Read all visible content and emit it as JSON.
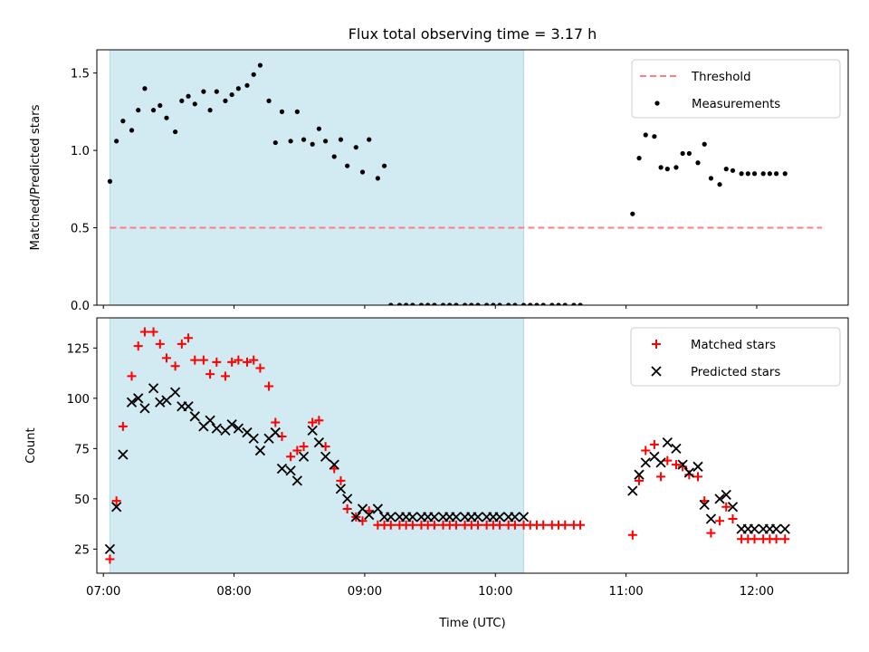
{
  "chart_data": [
    {
      "type": "scatter",
      "title": "Flux total observing time = 3.17 h",
      "xlabel": "",
      "ylabel": "Matched/Predicted stars",
      "xlim": [
        "06:57",
        "12:42"
      ],
      "ylim": [
        0,
        1.65
      ],
      "yticks": [
        0.0,
        0.5,
        1.0,
        1.5
      ],
      "ytick_labels": [
        "0.0",
        "0.5",
        "1.0",
        "1.5"
      ],
      "shaded_region": {
        "x_start": "07:03",
        "x_end": "10:13",
        "color": "#add8e6"
      },
      "legend_position": "upper right",
      "series": [
        {
          "name": "Threshold",
          "kind": "dashed-line",
          "color": "#ff7f7f",
          "x": [
            "07:03",
            "12:30"
          ],
          "y": [
            0.5,
            0.5
          ]
        },
        {
          "name": "Measurements",
          "kind": "dot",
          "color": "#000000",
          "x": [
            "07:03",
            "07:06",
            "07:09",
            "07:13",
            "07:16",
            "07:19",
            "07:23",
            "07:26",
            "07:29",
            "07:33",
            "07:36",
            "07:39",
            "07:42",
            "07:46",
            "07:49",
            "07:52",
            "07:56",
            "07:59",
            "08:02",
            "08:06",
            "08:09",
            "08:12",
            "08:16",
            "08:19",
            "08:22",
            "08:26",
            "08:29",
            "08:32",
            "08:36",
            "08:39",
            "08:42",
            "08:46",
            "08:49",
            "08:52",
            "08:56",
            "08:59",
            "09:02",
            "09:06",
            "09:09",
            "09:12",
            "09:16",
            "09:19",
            "09:22",
            "09:26",
            "09:29",
            "09:32",
            "09:36",
            "09:39",
            "09:42",
            "09:46",
            "09:49",
            "09:52",
            "09:56",
            "09:59",
            "10:02",
            "10:06",
            "10:09",
            "10:13",
            "10:16",
            "10:19",
            "10:22",
            "10:26",
            "10:29",
            "10:32",
            "10:36",
            "10:39",
            "11:03",
            "11:06",
            "11:09",
            "11:13",
            "11:16",
            "11:19",
            "11:23",
            "11:26",
            "11:29",
            "11:33",
            "11:36",
            "11:39",
            "11:43",
            "11:46",
            "11:49",
            "11:53",
            "11:56",
            "11:59",
            "12:03",
            "12:06",
            "12:09",
            "12:13"
          ],
          "y": [
            0.8,
            1.06,
            1.19,
            1.13,
            1.26,
            1.4,
            1.26,
            1.29,
            1.21,
            1.12,
            1.32,
            1.35,
            1.3,
            1.38,
            1.26,
            1.38,
            1.32,
            1.36,
            1.4,
            1.42,
            1.49,
            1.55,
            1.32,
            1.05,
            1.25,
            1.06,
            1.25,
            1.07,
            1.04,
            1.14,
            1.06,
            0.96,
            1.07,
            0.9,
            1.02,
            0.86,
            1.07,
            0.82,
            0.9,
            0.0,
            0.0,
            0.0,
            0.0,
            0.0,
            0.0,
            0.0,
            0.0,
            0.0,
            0.0,
            0.0,
            0.0,
            0.0,
            0.0,
            0.0,
            0.0,
            0.0,
            0.0,
            0.0,
            0.0,
            0.0,
            0.0,
            0.0,
            0.0,
            0.0,
            0.0,
            0.0,
            0.59,
            0.95,
            1.1,
            1.09,
            0.89,
            0.88,
            0.89,
            0.98,
            0.98,
            0.92,
            1.04,
            0.82,
            0.78,
            0.88,
            0.87,
            0.85,
            0.85,
            0.85,
            0.85,
            0.85,
            0.85,
            0.85
          ]
        }
      ]
    },
    {
      "type": "scatter",
      "title": "",
      "xlabel": "Time (UTC)",
      "ylabel": "Count",
      "xlim": [
        "06:57",
        "12:42"
      ],
      "ylim": [
        13,
        140
      ],
      "yticks": [
        25,
        50,
        75,
        100,
        125
      ],
      "ytick_labels": [
        "25",
        "50",
        "75",
        "100",
        "125"
      ],
      "xticks": [
        "07:00",
        "08:00",
        "09:00",
        "10:00",
        "11:00",
        "12:00"
      ],
      "xtick_labels": [
        "07:00",
        "08:00",
        "09:00",
        "10:00",
        "11:00",
        "12:00"
      ],
      "shaded_region": {
        "x_start": "07:03",
        "x_end": "10:13",
        "color": "#add8e6"
      },
      "legend_position": "upper right",
      "series": [
        {
          "name": "Matched stars",
          "kind": "plus",
          "color": "#ff0000",
          "x": [
            "07:03",
            "07:06",
            "07:09",
            "07:13",
            "07:16",
            "07:19",
            "07:23",
            "07:26",
            "07:29",
            "07:33",
            "07:36",
            "07:39",
            "07:42",
            "07:46",
            "07:49",
            "07:52",
            "07:56",
            "07:59",
            "08:02",
            "08:06",
            "08:09",
            "08:12",
            "08:16",
            "08:19",
            "08:22",
            "08:26",
            "08:29",
            "08:32",
            "08:36",
            "08:39",
            "08:42",
            "08:46",
            "08:49",
            "08:52",
            "08:56",
            "08:59",
            "09:02",
            "09:06",
            "09:09",
            "09:12",
            "09:16",
            "09:19",
            "09:22",
            "09:26",
            "09:29",
            "09:32",
            "09:36",
            "09:39",
            "09:42",
            "09:46",
            "09:49",
            "09:52",
            "09:56",
            "09:59",
            "10:02",
            "10:06",
            "10:09",
            "10:13",
            "10:16",
            "10:19",
            "10:22",
            "10:26",
            "10:29",
            "10:32",
            "10:36",
            "10:39",
            "11:03",
            "11:06",
            "11:09",
            "11:13",
            "11:16",
            "11:19",
            "11:23",
            "11:26",
            "11:29",
            "11:33",
            "11:36",
            "11:39",
            "11:43",
            "11:46",
            "11:49",
            "11:53",
            "11:56",
            "11:59",
            "12:03",
            "12:06",
            "12:09",
            "12:13"
          ],
          "y": [
            20,
            49,
            86,
            111,
            126,
            133,
            133,
            127,
            120,
            116,
            127,
            130,
            119,
            119,
            112,
            118,
            111,
            118,
            119,
            118,
            119,
            115,
            106,
            88,
            81,
            71,
            74,
            76,
            88,
            89,
            76,
            65,
            59,
            45,
            41,
            39,
            44,
            37,
            37,
            37,
            37,
            37,
            37,
            37,
            37,
            37,
            37,
            37,
            37,
            37,
            37,
            37,
            37,
            37,
            37,
            37,
            37,
            37,
            37,
            37,
            37,
            37,
            37,
            37,
            37,
            37,
            32,
            59,
            74,
            77,
            61,
            69,
            67,
            66,
            62,
            61,
            49,
            33,
            39,
            46,
            40,
            30,
            30,
            30,
            30,
            30,
            30,
            30
          ]
        },
        {
          "name": "Predicted stars",
          "kind": "x",
          "color": "#000000",
          "x": [
            "07:03",
            "07:06",
            "07:09",
            "07:13",
            "07:16",
            "07:19",
            "07:23",
            "07:26",
            "07:29",
            "07:33",
            "07:36",
            "07:39",
            "07:42",
            "07:46",
            "07:49",
            "07:52",
            "07:56",
            "07:59",
            "08:02",
            "08:06",
            "08:09",
            "08:12",
            "08:16",
            "08:19",
            "08:22",
            "08:26",
            "08:29",
            "08:32",
            "08:36",
            "08:39",
            "08:42",
            "08:46",
            "08:49",
            "08:52",
            "08:56",
            "08:59",
            "09:02",
            "09:06",
            "09:09",
            "09:12",
            "09:16",
            "09:19",
            "09:22",
            "09:26",
            "09:29",
            "09:32",
            "09:36",
            "09:39",
            "09:42",
            "09:46",
            "09:49",
            "09:52",
            "09:56",
            "09:59",
            "10:02",
            "10:06",
            "10:09",
            "10:13",
            "11:03",
            "11:06",
            "11:09",
            "11:13",
            "11:16",
            "11:19",
            "11:23",
            "11:26",
            "11:29",
            "11:33",
            "11:36",
            "11:39",
            "11:43",
            "11:46",
            "11:49",
            "11:53",
            "11:56",
            "11:59",
            "12:03",
            "12:06",
            "12:09",
            "12:13"
          ],
          "y": [
            25,
            46,
            72,
            98,
            100,
            95,
            105,
            98,
            99,
            103,
            96,
            96,
            91,
            86,
            89,
            85,
            84,
            87,
            85,
            83,
            80,
            74,
            80,
            83,
            65,
            64,
            59,
            71,
            84,
            78,
            71,
            67,
            55,
            50,
            41,
            45,
            42,
            45,
            41,
            41,
            41,
            41,
            41,
            41,
            41,
            41,
            41,
            41,
            41,
            41,
            41,
            41,
            41,
            41,
            41,
            41,
            41,
            41,
            54,
            62,
            68,
            71,
            68,
            78,
            75,
            67,
            63,
            66,
            47,
            40,
            50,
            52,
            46,
            35,
            35,
            35,
            35,
            35,
            35,
            35
          ]
        }
      ]
    }
  ]
}
